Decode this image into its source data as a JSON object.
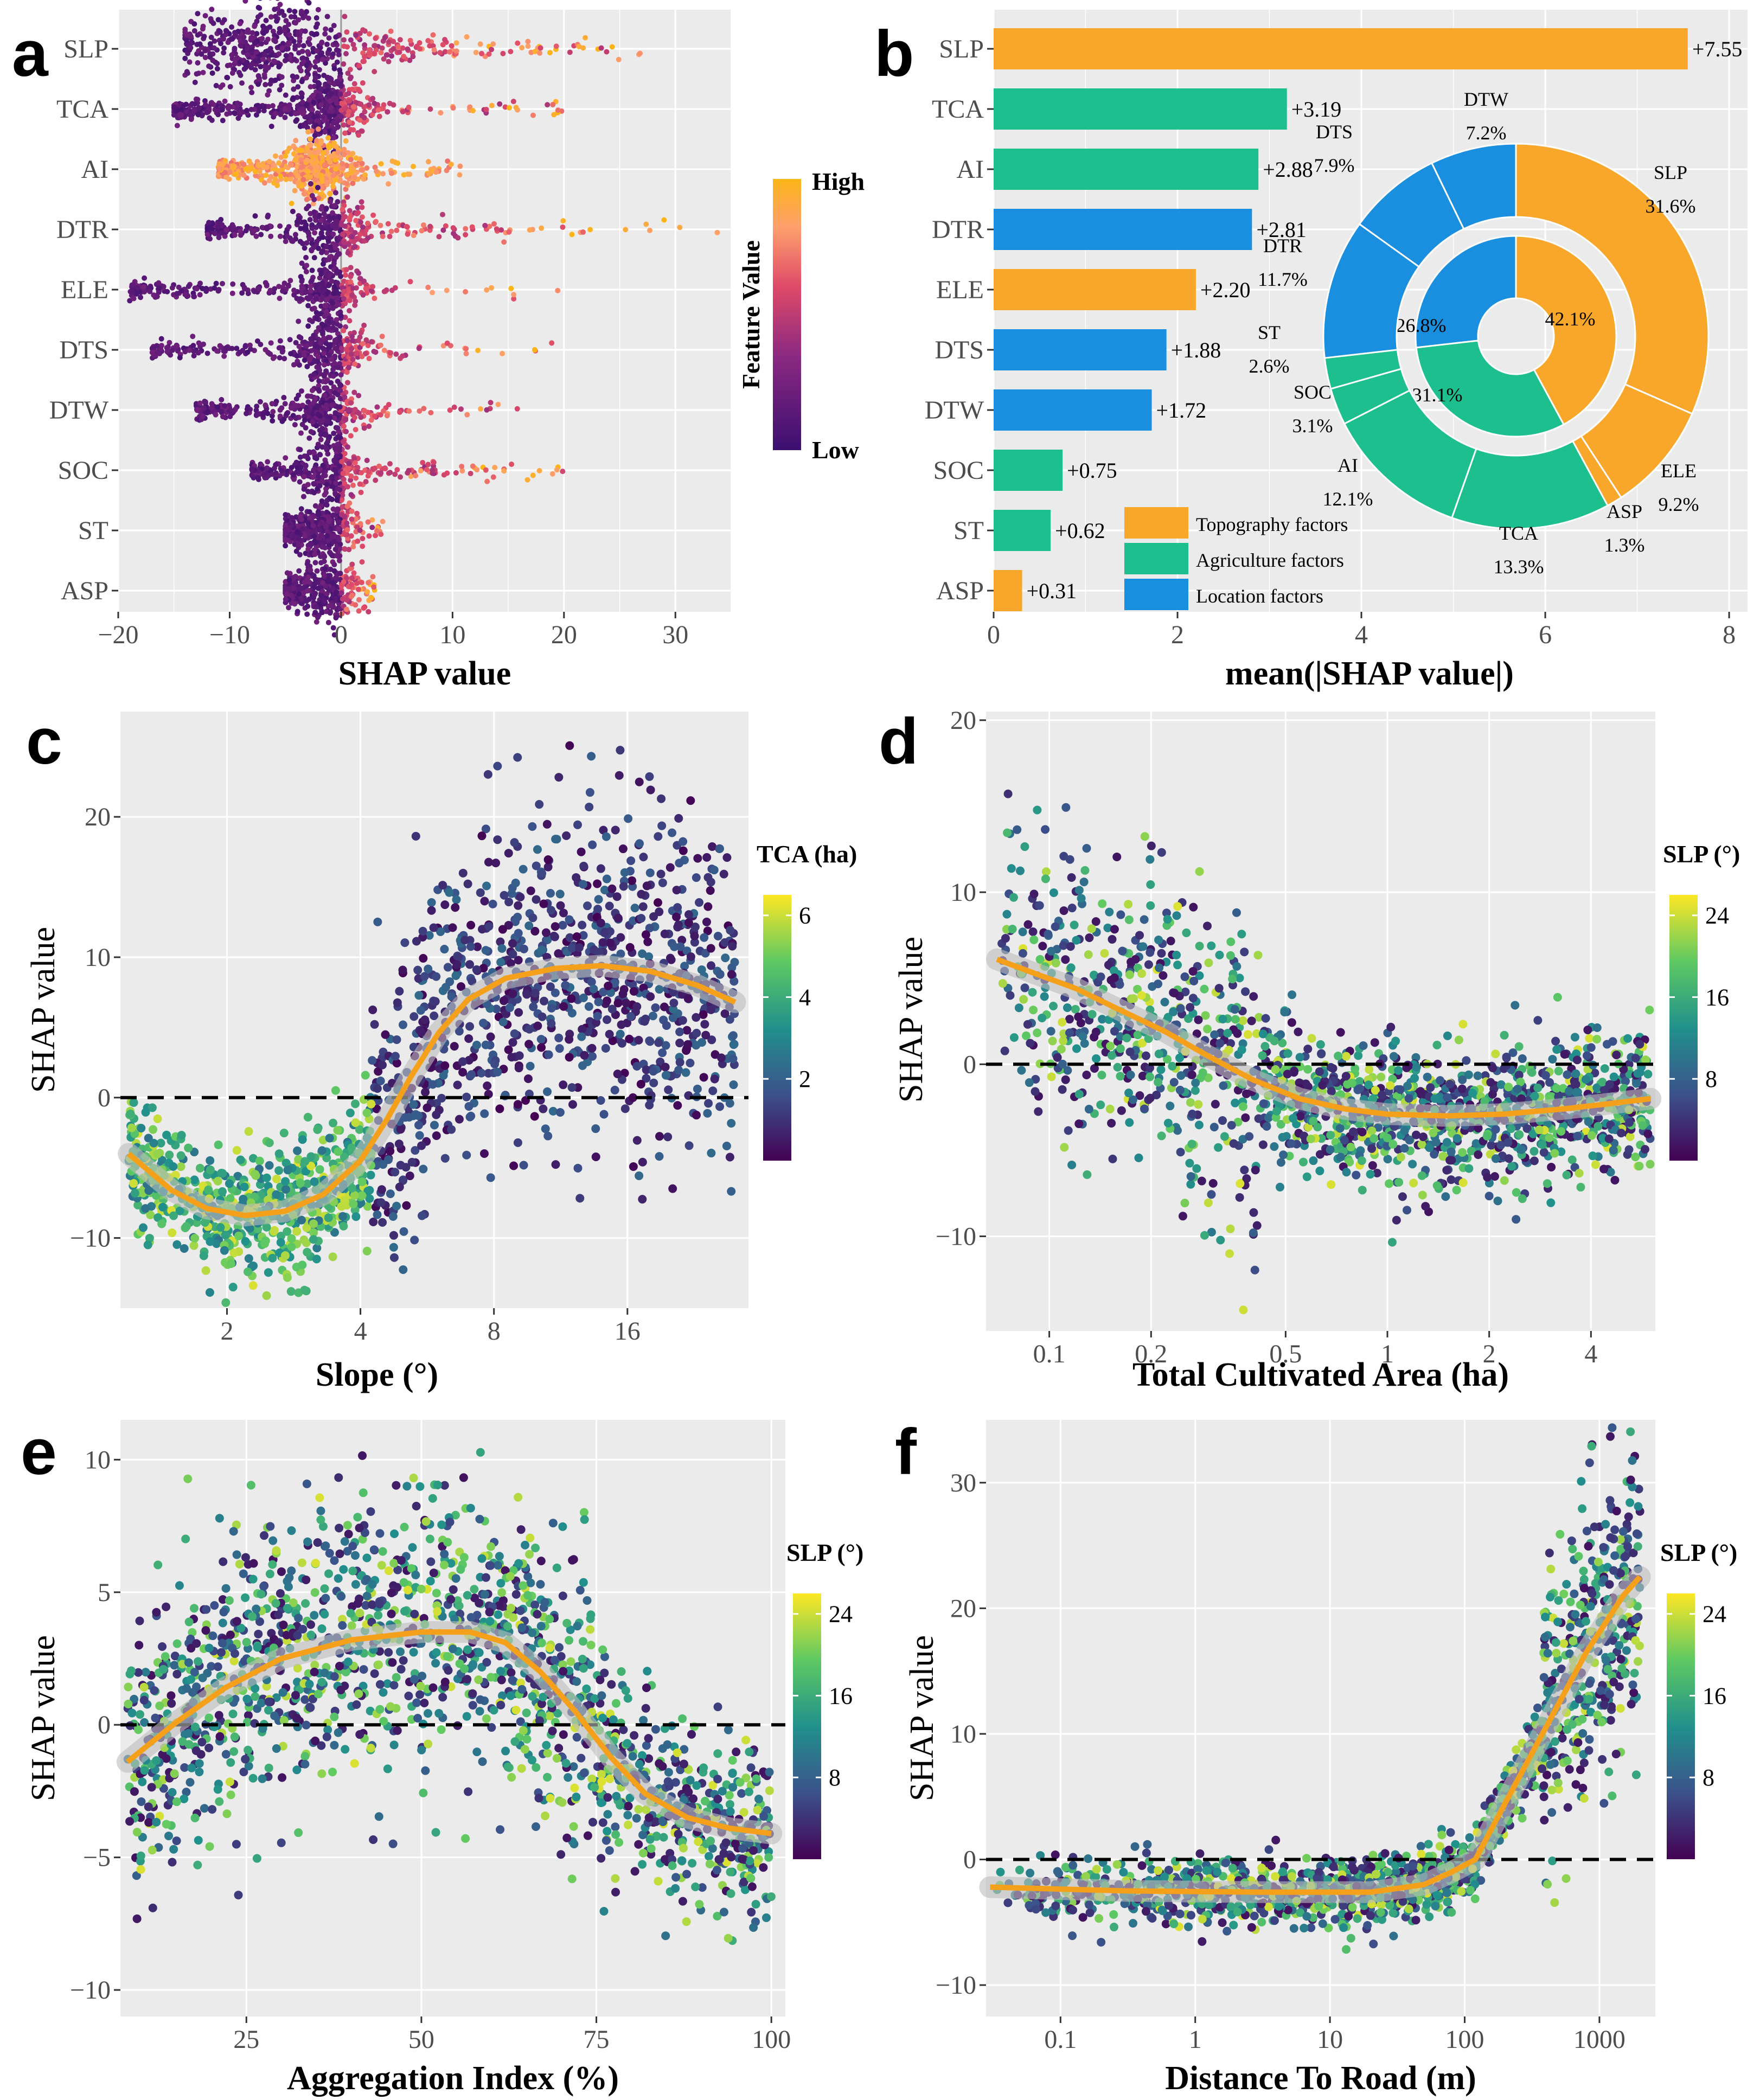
{
  "figure": {
    "panels": [
      "a",
      "b",
      "c",
      "d",
      "e",
      "f"
    ],
    "colors": {
      "topography": "#F9A72B",
      "agriculture": "#1DBF8E",
      "location": "#1A8FE0",
      "smooth": "#F5A01A",
      "panel_bg": "#EBEBEB",
      "grid": "#FFFFFF"
    }
  },
  "chart_data": [
    {
      "id": "a",
      "type": "scatter",
      "subtype": "beeswarm",
      "features": [
        "SLP",
        "TCA",
        "AI",
        "DTR",
        "ELE",
        "DTS",
        "DTW",
        "SOC",
        "ST",
        "ASP"
      ],
      "spread_min": [
        -14,
        -15,
        -11,
        -12,
        -19,
        -17,
        -13,
        -8,
        -5,
        -5
      ],
      "spread_max": [
        27,
        20,
        11,
        34,
        20,
        20,
        16,
        20,
        4,
        3
      ],
      "xlabel": "SHAP value",
      "xticks": [
        -20,
        -10,
        0,
        10,
        20,
        30
      ],
      "xtick_labels": [
        "−20",
        "−10",
        "0",
        "10",
        "20",
        "30"
      ],
      "xlim": [
        -20,
        35
      ],
      "legend": {
        "title": "Feature Value",
        "high": "High",
        "low": "Low"
      }
    },
    {
      "id": "b",
      "type": "bar",
      "orientation": "horizontal",
      "categories": [
        "SLP",
        "TCA",
        "AI",
        "DTR",
        "ELE",
        "DTS",
        "DTW",
        "SOC",
        "ST",
        "ASP"
      ],
      "values": [
        7.55,
        3.19,
        2.88,
        2.81,
        2.2,
        1.88,
        1.72,
        0.75,
        0.62,
        0.31
      ],
      "value_labels": [
        "+7.55",
        "+3.19",
        "+2.88",
        "+2.81",
        "+2.20",
        "+1.88",
        "+1.72",
        "+0.75",
        "+0.62",
        "+0.31"
      ],
      "groups": [
        "topography",
        "agriculture",
        "agriculture",
        "location",
        "topography",
        "location",
        "location",
        "agriculture",
        "agriculture",
        "topography"
      ],
      "xlabel": "mean(|SHAP value|)",
      "xticks": [
        0,
        2,
        4,
        6,
        8
      ],
      "xlim": [
        0,
        8.2
      ],
      "legend": [
        {
          "key": "topography",
          "label": "Topography factors"
        },
        {
          "key": "agriculture",
          "label": "Agriculture factors"
        },
        {
          "key": "location",
          "label": "Location factors"
        }
      ],
      "donut": {
        "inner": [
          {
            "label": "42.1%",
            "value": 42.1,
            "group": "topography"
          },
          {
            "label": "31.1%",
            "value": 31.1,
            "group": "agriculture"
          },
          {
            "label": "26.8%",
            "value": 26.8,
            "group": "location"
          }
        ],
        "outer": [
          {
            "name": "SLP",
            "pct": "31.6%",
            "value": 31.6,
            "group": "topography"
          },
          {
            "name": "ELE",
            "pct": "9.2%",
            "value": 9.2,
            "group": "topography"
          },
          {
            "name": "ASP",
            "pct": "1.3%",
            "value": 1.3,
            "group": "topography"
          },
          {
            "name": "TCA",
            "pct": "13.3%",
            "value": 13.3,
            "group": "agriculture"
          },
          {
            "name": "AI",
            "pct": "12.1%",
            "value": 12.1,
            "group": "agriculture"
          },
          {
            "name": "SOC",
            "pct": "3.1%",
            "value": 3.1,
            "group": "agriculture"
          },
          {
            "name": "ST",
            "pct": "2.6%",
            "value": 2.6,
            "group": "agriculture"
          },
          {
            "name": "DTR",
            "pct": "11.7%",
            "value": 11.7,
            "group": "location"
          },
          {
            "name": "DTS",
            "pct": "7.9%",
            "value": 7.9,
            "group": "location"
          },
          {
            "name": "DTW",
            "pct": "7.2%",
            "value": 7.2,
            "group": "location"
          }
        ]
      }
    },
    {
      "id": "c",
      "type": "scatter",
      "xscale": "log2",
      "xlabel": "Slope (°)",
      "ylabel": "SHAP value",
      "xticks": [
        2,
        4,
        8,
        16
      ],
      "yticks": [
        -10,
        0,
        10,
        20
      ],
      "xlim": [
        1.15,
        30
      ],
      "ylim": [
        -15,
        27.5
      ],
      "colorbar": {
        "title": "TCA (ha)",
        "ticks": [
          2,
          4,
          6
        ],
        "range": [
          0,
          6.5
        ]
      },
      "smooth": [
        [
          1.2,
          -4
        ],
        [
          1.5,
          -6.6
        ],
        [
          1.8,
          -7.9
        ],
        [
          2.2,
          -8.4
        ],
        [
          2.7,
          -8.1
        ],
        [
          3.3,
          -6.9
        ],
        [
          4.0,
          -4.5
        ],
        [
          4.6,
          -1.5
        ],
        [
          5.2,
          1.5
        ],
        [
          6.0,
          4.6
        ],
        [
          7.0,
          7.0
        ],
        [
          8.5,
          8.5
        ],
        [
          11,
          9.2
        ],
        [
          14,
          9.4
        ],
        [
          18,
          9.0
        ],
        [
          23,
          8.0
        ],
        [
          28,
          6.8
        ]
      ]
    },
    {
      "id": "d",
      "type": "scatter",
      "xscale": "log2",
      "xlabel": "Total Cultivated Area (ha)",
      "ylabel": "SHAP value",
      "xticks": [
        0.1,
        0.2,
        0.5,
        1,
        2,
        4
      ],
      "yticks": [
        -10,
        0,
        10,
        20
      ],
      "xlim": [
        0.065,
        6.2
      ],
      "ylim": [
        -15.5,
        20.5
      ],
      "colorbar": {
        "title": "SLP (°)",
        "ticks": [
          8,
          16,
          24
        ],
        "range": [
          0,
          26
        ]
      },
      "smooth": [
        [
          0.07,
          6.1
        ],
        [
          0.09,
          5.3
        ],
        [
          0.12,
          4.4
        ],
        [
          0.16,
          3.2
        ],
        [
          0.22,
          1.9
        ],
        [
          0.3,
          0.4
        ],
        [
          0.4,
          -0.9
        ],
        [
          0.55,
          -2.0
        ],
        [
          0.75,
          -2.6
        ],
        [
          1.0,
          -2.9
        ],
        [
          1.5,
          -3.0
        ],
        [
          2.2,
          -2.9
        ],
        [
          3.3,
          -2.6
        ],
        [
          4.5,
          -2.3
        ],
        [
          6.0,
          -2.0
        ]
      ]
    },
    {
      "id": "e",
      "type": "scatter",
      "xscale": "linear",
      "xlabel": "Aggregation Index (%)",
      "ylabel": "SHAP value",
      "xticks": [
        25,
        50,
        75,
        100
      ],
      "yticks": [
        -10,
        -5,
        0,
        5,
        10
      ],
      "xlim": [
        7,
        102
      ],
      "ylim": [
        -11,
        11.5
      ],
      "colorbar": {
        "title": "SLP (°)",
        "ticks": [
          8,
          16,
          24
        ],
        "range": [
          0,
          26
        ]
      },
      "smooth": [
        [
          8,
          -1.4
        ],
        [
          15,
          0.1
        ],
        [
          22,
          1.4
        ],
        [
          30,
          2.5
        ],
        [
          40,
          3.2
        ],
        [
          50,
          3.5
        ],
        [
          57,
          3.5
        ],
        [
          62,
          3.1
        ],
        [
          67,
          2.0
        ],
        [
          72,
          0.5
        ],
        [
          77,
          -1.2
        ],
        [
          82,
          -2.6
        ],
        [
          88,
          -3.5
        ],
        [
          94,
          -3.9
        ],
        [
          100,
          -4.1
        ]
      ]
    },
    {
      "id": "f",
      "type": "scatter",
      "xscale": "log10",
      "xlabel": "Distance To Road (m)",
      "ylabel": "SHAP value",
      "xticks": [
        0.1,
        1,
        10,
        100,
        1000
      ],
      "xtick_labels": [
        "0.1",
        "1",
        "10",
        "100",
        "1000"
      ],
      "yticks": [
        -10,
        0,
        10,
        20,
        30
      ],
      "xlim": [
        0.028,
        2600
      ],
      "ylim": [
        -12.5,
        35
      ],
      "colorbar": {
        "title": "SLP (°)",
        "ticks": [
          8,
          16,
          24
        ],
        "range": [
          0,
          26
        ]
      },
      "smooth": [
        [
          0.03,
          -2.2
        ],
        [
          0.3,
          -2.5
        ],
        [
          3,
          -2.6
        ],
        [
          20,
          -2.6
        ],
        [
          50,
          -2.0
        ],
        [
          80,
          -1.0
        ],
        [
          120,
          0.0
        ],
        [
          200,
          4.5
        ],
        [
          400,
          10.5
        ],
        [
          800,
          16.5
        ],
        [
          1500,
          21.0
        ],
        [
          2000,
          22.5
        ]
      ]
    }
  ]
}
